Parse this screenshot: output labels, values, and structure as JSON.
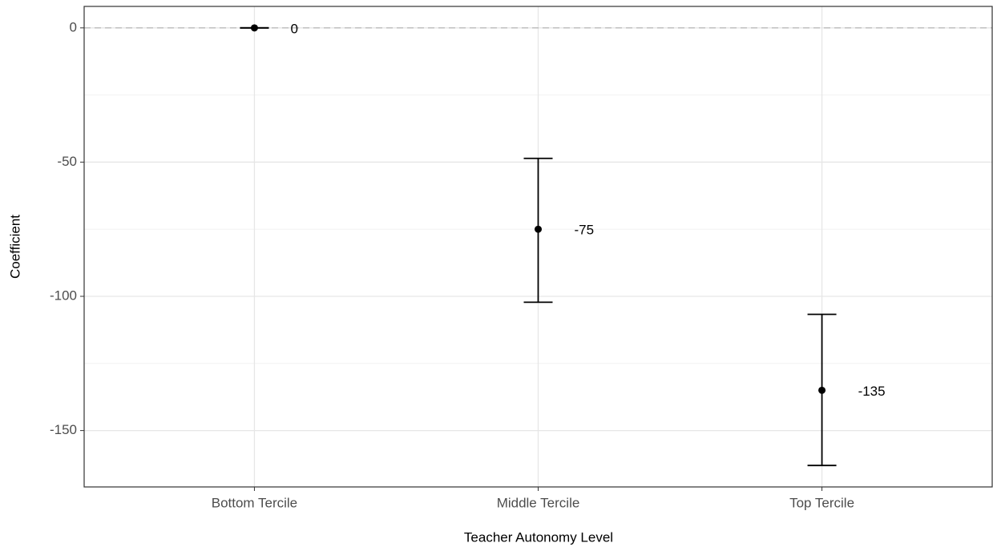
{
  "chart_data": {
    "type": "errorbar",
    "x_label": "Teacher Autonomy Level",
    "y_label": "Coefficient",
    "categories": [
      "Bottom Tercile",
      "Middle Tercile",
      "Top Tercile"
    ],
    "values": [
      0,
      -75,
      -135
    ],
    "lower": [
      0,
      -102.2,
      -163
    ],
    "upper": [
      0,
      -48.6,
      -106.7
    ],
    "color": "#000000",
    "ylim": [
      -171,
      8
    ],
    "yticks": [
      0,
      -50,
      -100,
      -150
    ],
    "minor_yticks": [
      -25,
      -75,
      -125,
      -175
    ],
    "reference_line": 0,
    "grid": true
  }
}
